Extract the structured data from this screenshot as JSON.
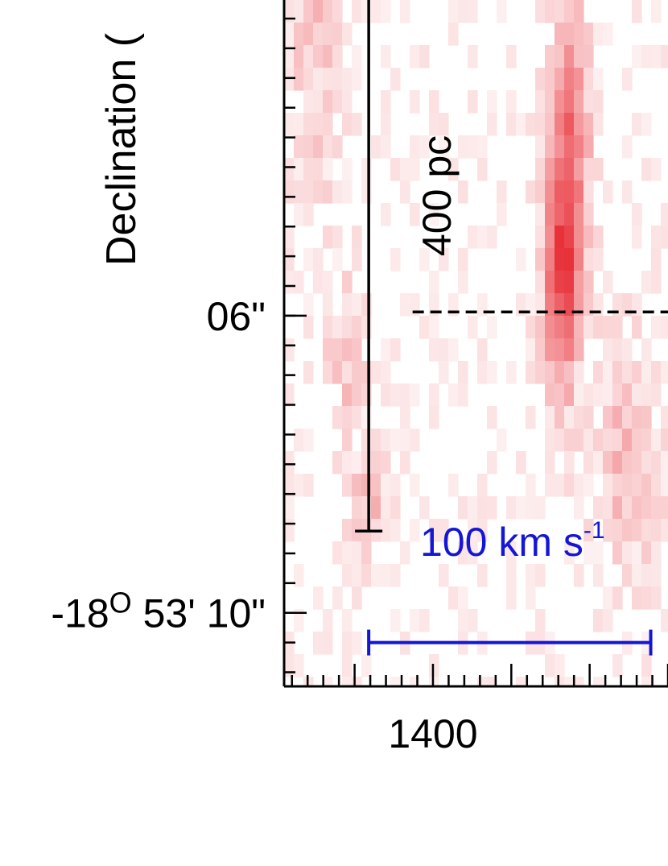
{
  "chart_data": {
    "type": "heatmap",
    "title": "",
    "xlabel": "",
    "ylabel": "Declination (",
    "colormap": [
      "#ffffff",
      "#e8323a"
    ],
    "x_ticks": [
      {
        "value": 1400,
        "label": "1400"
      }
    ],
    "x_range": [
      1305,
      1550
    ],
    "x_tick_step": 50,
    "x_minor_step": 10,
    "y_ticks": [
      {
        "value": 6,
        "label": "06\"",
        "sup": ""
      },
      {
        "value": 10,
        "label": "-18",
        "sup": "O",
        "label_rest": " 53' 10\""
      }
    ],
    "y_range": [
      1.75,
      10.99
    ],
    "y_unit": "arcsec (offset from -18° 53' 00\")",
    "y_minor_step": 0.4,
    "annotations": {
      "scale_bar_spatial": {
        "label": "400 pc",
        "y_top": 1.0,
        "y_bottom": 8.9,
        "x": 1359
      },
      "scale_bar_velocity": {
        "label": "100 km s",
        "sup": "-1",
        "x_start": 1359,
        "x_end": 1540,
        "y": 10.4
      },
      "dashed_line": {
        "y": 5.95,
        "x_start": 1387,
        "x_end": 1550
      }
    },
    "emission_regions": [
      {
        "x": 1482,
        "y": 5.5,
        "amp": 0.75,
        "sx": 8,
        "sy": 1.2
      },
      {
        "x": 1488,
        "y": 3.6,
        "amp": 0.55,
        "sx": 9,
        "sy": 1.4
      },
      {
        "x": 1525,
        "y": 7.9,
        "amp": 0.35,
        "sx": 16,
        "sy": 1.0
      },
      {
        "x": 1345,
        "y": 6.6,
        "amp": 0.25,
        "sx": 10,
        "sy": 0.8
      },
      {
        "x": 1360,
        "y": 8.6,
        "amp": 0.3,
        "sx": 9,
        "sy": 0.6
      },
      {
        "x": 1325,
        "y": 2.4,
        "amp": 0.25,
        "sx": 12,
        "sy": 1.5
      }
    ]
  }
}
